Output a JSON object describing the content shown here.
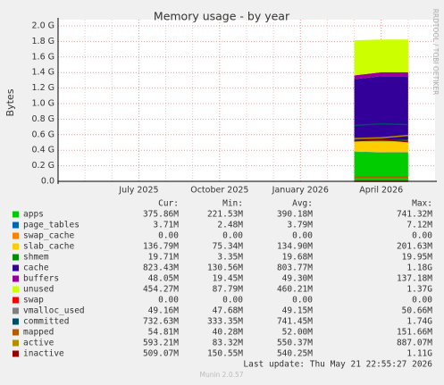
{
  "chart_data": {
    "type": "stacked-area",
    "title": "Memory usage - by year",
    "y_label": "Bytes",
    "side_note": "RRDTOOL / TOBI OETIKER",
    "last_update": "Last update: Thu May 21 22:55:27 2026",
    "footer": "Munin 2.0.57",
    "grid": true,
    "xlim": [
      "2025-04",
      "2026-06"
    ],
    "xticks": [
      {
        "value": "2025-07",
        "label": "July 2025"
      },
      {
        "value": "2025-10",
        "label": "October 2025"
      },
      {
        "value": "2026-01",
        "label": "January 2026"
      },
      {
        "value": "2026-04",
        "label": "April 2026"
      }
    ],
    "ylim": [
      0,
      2.0
    ],
    "yticks": [
      {
        "value": 0,
        "label": "0.0"
      },
      {
        "value": 0.2,
        "label": "0.2 G"
      },
      {
        "value": 0.4,
        "label": "0.4 G"
      },
      {
        "value": 0.6,
        "label": "0.6 G"
      },
      {
        "value": 0.8,
        "label": "0.8 G"
      },
      {
        "value": 1.0,
        "label": "1.0 G"
      },
      {
        "value": 1.2,
        "label": "1.2 G"
      },
      {
        "value": 1.4,
        "label": "1.4 G"
      },
      {
        "value": 1.6,
        "label": "1.6 G"
      },
      {
        "value": 1.8,
        "label": "1.8 G"
      },
      {
        "value": 2.0,
        "label": "2.0 G"
      }
    ],
    "x": [
      "2026-03",
      "2026-04",
      "2026-05"
    ],
    "stat_columns": [
      "Cur:",
      "Min:",
      "Avg:",
      "Max:"
    ],
    "series": [
      {
        "name": "apps",
        "color": "#00cc00",
        "stack": true,
        "values": [
          0.38,
          0.37,
          0.37
        ],
        "stats": [
          "375.86M",
          "221.53M",
          "390.18M",
          "741.32M"
        ]
      },
      {
        "name": "page_tables",
        "color": "#0066b3",
        "stack": true,
        "values": [
          0.004,
          0.004,
          0.004
        ],
        "stats": [
          "3.71M",
          "2.48M",
          "3.79M",
          "7.12M"
        ]
      },
      {
        "name": "swap_cache",
        "color": "#ff8000",
        "stack": true,
        "values": [
          0,
          0,
          0
        ],
        "stats": [
          "0.00",
          "0.00",
          "0.00",
          "0.00"
        ]
      },
      {
        "name": "slab_cache",
        "color": "#ffcc00",
        "stack": true,
        "values": [
          0.13,
          0.14,
          0.14
        ],
        "stats": [
          "136.79M",
          "75.34M",
          "134.90M",
          "201.63M"
        ]
      },
      {
        "name": "shmem",
        "color": "#008f00",
        "stack": true,
        "values": [
          0.02,
          0.02,
          0.02
        ],
        "stats": [
          "19.71M",
          "3.35M",
          "19.68M",
          "19.95M"
        ]
      },
      {
        "name": "cache",
        "color": "#330099",
        "stack": true,
        "values": [
          0.78,
          0.82,
          0.82
        ],
        "stats": [
          "823.43M",
          "130.56M",
          "803.77M",
          "1.18G"
        ]
      },
      {
        "name": "buffers",
        "color": "#990099",
        "stack": true,
        "values": [
          0.05,
          0.05,
          0.05
        ],
        "stats": [
          "48.05M",
          "19.45M",
          "49.30M",
          "137.18M"
        ]
      },
      {
        "name": "unused",
        "color": "#ccff00",
        "stack": true,
        "values": [
          0.45,
          0.42,
          0.42
        ],
        "stats": [
          "454.27M",
          "87.79M",
          "460.21M",
          "1.37G"
        ]
      },
      {
        "name": "swap",
        "color": "#ff0000",
        "stack": false,
        "values": [
          0,
          0,
          0
        ],
        "stats": [
          "0.00",
          "0.00",
          "0.00",
          "0.00"
        ]
      },
      {
        "name": "vmalloc_used",
        "color": "#808080",
        "stack": false,
        "values": [
          0.05,
          0.05,
          0.05
        ],
        "stats": [
          "49.16M",
          "47.68M",
          "49.15M",
          "50.66M"
        ]
      },
      {
        "name": "committed",
        "color": "#004d66",
        "stack": false,
        "values": [
          0.72,
          0.74,
          0.73
        ],
        "stats": [
          "732.63M",
          "333.35M",
          "741.45M",
          "1.74G"
        ]
      },
      {
        "name": "mapped",
        "color": "#b35a00",
        "stack": false,
        "values": [
          0.055,
          0.055,
          0.055
        ],
        "stats": [
          "54.81M",
          "40.28M",
          "52.00M",
          "151.66M"
        ]
      },
      {
        "name": "active",
        "color": "#b38f00",
        "stack": false,
        "values": [
          0.55,
          0.56,
          0.59
        ],
        "stats": [
          "593.21M",
          "83.32M",
          "550.37M",
          "887.07M"
        ]
      },
      {
        "name": "inactive",
        "color": "#990000",
        "stack": false,
        "values": [
          0.52,
          0.54,
          0.51
        ],
        "stats": [
          "509.07M",
          "150.55M",
          "540.25M",
          "1.11G"
        ]
      }
    ]
  }
}
